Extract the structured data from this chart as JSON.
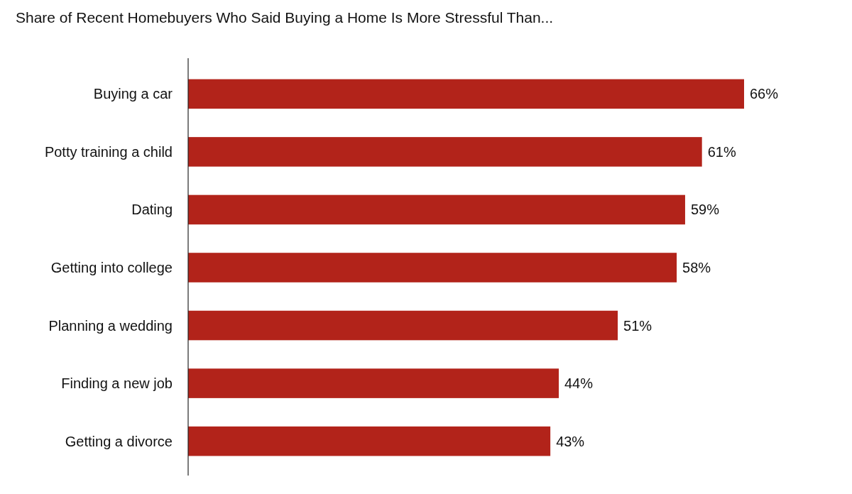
{
  "chart_data": {
    "type": "bar",
    "orientation": "horizontal",
    "title": "Share of Recent Homebuyers Who Said Buying a Home Is More Stressful Than...",
    "categories": [
      "Buying a car",
      "Potty training a child",
      "Dating",
      "Getting into college",
      "Planning a wedding",
      "Finding a new job",
      "Getting a divorce"
    ],
    "values": [
      66,
      61,
      59,
      58,
      51,
      44,
      43
    ],
    "value_labels": [
      "66%",
      "61%",
      "59%",
      "58%",
      "51%",
      "44%",
      "43%"
    ],
    "color": "#b2231a"
  }
}
